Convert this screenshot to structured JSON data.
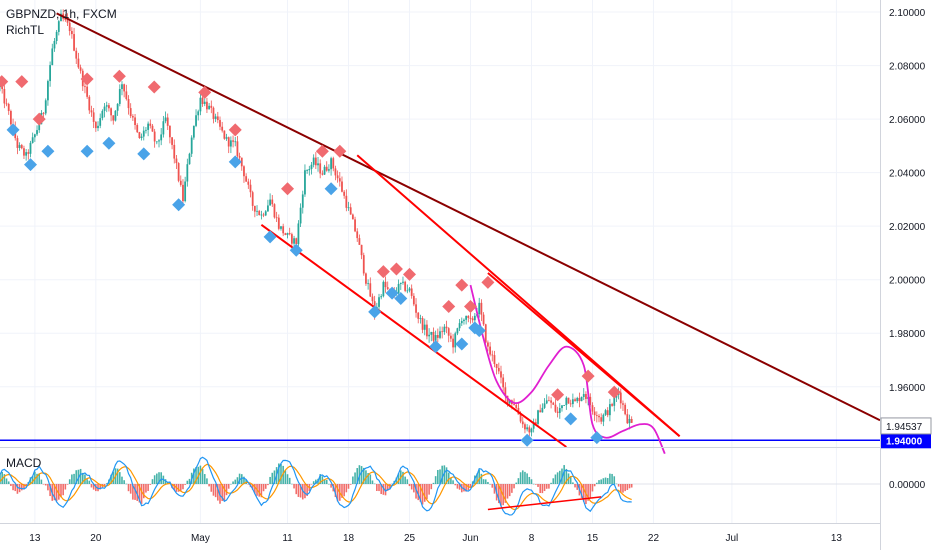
{
  "header": {
    "symbol_line": "GBPNZD, 1h, FXCM",
    "indicator": "RichTL"
  },
  "macd_label": "MACD",
  "chart_data": {
    "type": "candlestick",
    "symbol": "GBPNZD",
    "timeframe": "1h",
    "source": "FXCM",
    "ylim": [
      1.9375,
      2.1045
    ],
    "y_ticks": [
      2.1,
      2.08,
      2.06,
      2.04,
      2.02,
      2.0,
      1.98,
      1.96
    ],
    "y_tick_labels": [
      "2.10000",
      "2.08000",
      "2.06000",
      "2.04000",
      "2.02000",
      "2.00000",
      "1.98000",
      "1.96000"
    ],
    "x_tick_labels": [
      "13",
      "20",
      "May",
      "11",
      "18",
      "25",
      "Jun",
      "8",
      "15",
      "22",
      "Jul",
      "13"
    ],
    "x_tick_days": [
      -18,
      -11,
      1,
      11,
      18,
      25,
      32,
      39,
      46,
      53,
      62,
      74
    ],
    "x_range_days": [
      -22,
      79
    ],
    "current_price": 1.94537,
    "current_price_label": "1.94537",
    "support_level": 1.94,
    "support_label": "1.94000",
    "price_path": [
      [
        -22,
        2.072
      ],
      [
        -21,
        2.062
      ],
      [
        -20,
        2.05
      ],
      [
        -19,
        2.046
      ],
      [
        -18,
        2.054
      ],
      [
        -17,
        2.063
      ],
      [
        -16,
        2.086
      ],
      [
        -15,
        2.098
      ],
      [
        -14,
        2.094
      ],
      [
        -13,
        2.08
      ],
      [
        -12,
        2.068
      ],
      [
        -11,
        2.056
      ],
      [
        -10,
        2.066
      ],
      [
        -9,
        2.06
      ],
      [
        -8,
        2.074
      ],
      [
        -7,
        2.062
      ],
      [
        -6,
        2.052
      ],
      [
        -5,
        2.058
      ],
      [
        -4,
        2.05
      ],
      [
        -3,
        2.06
      ],
      [
        -2,
        2.046
      ],
      [
        -1,
        2.03
      ],
      [
        0,
        2.054
      ],
      [
        1,
        2.068
      ],
      [
        2,
        2.064
      ],
      [
        3,
        2.058
      ],
      [
        4,
        2.052
      ],
      [
        5,
        2.05
      ],
      [
        6,
        2.04
      ],
      [
        7,
        2.028
      ],
      [
        8,
        2.024
      ],
      [
        9,
        2.03
      ],
      [
        10,
        2.02
      ],
      [
        11,
        2.016
      ],
      [
        12,
        2.014
      ],
      [
        13,
        2.04
      ],
      [
        14,
        2.044
      ],
      [
        15,
        2.04
      ],
      [
        16,
        2.044
      ],
      [
        17,
        2.036
      ],
      [
        18,
        2.026
      ],
      [
        19,
        2.016
      ],
      [
        20,
        2.0
      ],
      [
        21,
        1.988
      ],
      [
        22,
        1.998
      ],
      [
        23,
        1.994
      ],
      [
        24,
        1.998
      ],
      [
        25,
        1.996
      ],
      [
        26,
        1.986
      ],
      [
        27,
        1.98
      ],
      [
        28,
        1.978
      ],
      [
        29,
        1.982
      ],
      [
        30,
        1.976
      ],
      [
        31,
        1.986
      ],
      [
        32,
        1.984
      ],
      [
        33,
        1.99
      ],
      [
        34,
        1.974
      ],
      [
        35,
        1.968
      ],
      [
        36,
        1.956
      ],
      [
        37,
        1.954
      ],
      [
        38,
        1.946
      ],
      [
        39,
        1.943
      ],
      [
        40,
        1.952
      ],
      [
        41,
        1.955
      ],
      [
        42,
        1.95
      ],
      [
        43,
        1.956
      ],
      [
        44,
        1.954
      ],
      [
        45,
        1.958
      ],
      [
        46,
        1.952
      ],
      [
        47,
        1.948
      ],
      [
        48,
        1.952
      ],
      [
        49,
        1.958
      ],
      [
        50,
        1.948
      ],
      [
        50.7,
        1.94537
      ]
    ],
    "trendlines": [
      {
        "name": "",
        "color": "#8b0000",
        "from": [
          -15.5,
          2.0995
        ],
        "to": [
          79,
          1.9475
        ]
      },
      {
        "name": "",
        "color": "#ff0000",
        "from": [
          19,
          2.0465
        ],
        "to": [
          56,
          1.9415
        ]
      },
      {
        "name": "",
        "color": "#ff0000",
        "from": [
          8,
          2.0205
        ],
        "to": [
          43,
          1.9375
        ]
      },
      {
        "name": "",
        "color": "#ff0000",
        "from": [
          34,
          2.0025
        ],
        "to": [
          56,
          1.9415
        ]
      }
    ],
    "projection_path": [
      [
        32,
        1.998
      ],
      [
        33.5,
        1.978
      ],
      [
        35,
        1.962
      ],
      [
        37,
        1.954
      ],
      [
        39,
        1.958
      ],
      [
        41,
        1.968
      ],
      [
        43,
        1.975
      ],
      [
        45,
        1.968
      ],
      [
        46,
        1.946
      ],
      [
        47.5,
        1.941
      ],
      [
        49.5,
        1.9435
      ],
      [
        51.5,
        1.946
      ],
      [
        53,
        1.9445
      ],
      [
        54.3,
        1.935
      ]
    ],
    "sell_signals": [
      [
        -21.8,
        2.074
      ],
      [
        -19.5,
        2.074
      ],
      [
        -17.5,
        2.06
      ],
      [
        -12,
        2.075
      ],
      [
        -8.3,
        2.076
      ],
      [
        -4.3,
        2.072
      ],
      [
        1.5,
        2.07
      ],
      [
        5,
        2.056
      ],
      [
        11,
        2.034
      ],
      [
        15,
        2.048
      ],
      [
        17,
        2.048
      ],
      [
        22,
        2.003
      ],
      [
        23.5,
        2.004
      ],
      [
        25,
        2.002
      ],
      [
        29.5,
        1.99
      ],
      [
        31,
        1.998
      ],
      [
        32,
        1.99
      ],
      [
        34,
        1.999
      ],
      [
        42,
        1.957
      ],
      [
        45.5,
        1.964
      ],
      [
        48.5,
        1.958
      ]
    ],
    "buy_signals": [
      [
        -20.5,
        2.056
      ],
      [
        -18.5,
        2.043
      ],
      [
        -16.5,
        2.048
      ],
      [
        -12,
        2.048
      ],
      [
        -9.5,
        2.051
      ],
      [
        -5.5,
        2.047
      ],
      [
        -1.5,
        2.028
      ],
      [
        5,
        2.044
      ],
      [
        9,
        2.016
      ],
      [
        12,
        2.011
      ],
      [
        16,
        2.034
      ],
      [
        21,
        1.988
      ],
      [
        23,
        1.995
      ],
      [
        24,
        1.993
      ],
      [
        28,
        1.975
      ],
      [
        31,
        1.976
      ],
      [
        32.5,
        1.982
      ],
      [
        33,
        1.981
      ],
      [
        38.5,
        1.94
      ],
      [
        43.5,
        1.948
      ],
      [
        46.5,
        1.941
      ]
    ],
    "macd": {
      "ylim": [
        -1,
        1
      ],
      "y_tick": 0.0,
      "y_tick_label": "0.00000",
      "divergence_line": {
        "from": [
          34,
          -0.85
        ],
        "to": [
          47,
          -0.43
        ]
      }
    }
  }
}
